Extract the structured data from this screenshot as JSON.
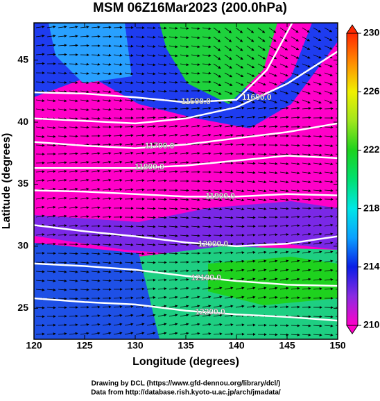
{
  "chart_data": {
    "type": "contour-map",
    "title": "MSM 06Z16Mar2023 (200.0hPa)",
    "x_label": "Longitude (degrees)",
    "y_label": "Latitude  (degrees)",
    "xlim": [
      120,
      150
    ],
    "ylim": [
      22.5,
      48
    ],
    "xticks": [
      120,
      125,
      130,
      135,
      140,
      145,
      150
    ],
    "yticks": [
      25,
      30,
      35,
      40,
      45
    ],
    "colorbar": {
      "lim": [
        210,
        230
      ],
      "ticks": [
        210,
        214,
        218,
        222,
        226,
        230
      ]
    },
    "contours": [
      {
        "level": 11500,
        "label": "11500.0",
        "lon": [
          120,
          125,
          130,
          135,
          140,
          143,
          145.5
        ],
        "lat": [
          42.4,
          42.3,
          42.0,
          41.6,
          41.8,
          44.2,
          48
        ]
      },
      {
        "level": 11600,
        "label": "11600.0",
        "lon": [
          120,
          125,
          130,
          135,
          140,
          145,
          150
        ],
        "lat": [
          40.3,
          40.1,
          39.9,
          40.3,
          41.2,
          43.1,
          45.7
        ]
      },
      {
        "level": 11700,
        "label": "11700.0",
        "lon": [
          120,
          125,
          130,
          135,
          140,
          145,
          150
        ],
        "lat": [
          38.4,
          38.1,
          37.9,
          38.2,
          38.7,
          39.2,
          39.9
        ]
      },
      {
        "level": 11800,
        "label": "11800.0",
        "lon": [
          120,
          125,
          130,
          135,
          140,
          145,
          150
        ],
        "lat": [
          36.3,
          36.3,
          36.3,
          36.5,
          36.9,
          37.3,
          37.1
        ]
      },
      {
        "level": 11900,
        "label": "11900.0",
        "lon": [
          120,
          125,
          130,
          135,
          140,
          145,
          150
        ],
        "lat": [
          34.5,
          34.4,
          34.2,
          34.0,
          34.0,
          34.2,
          34.1
        ]
      },
      {
        "level": 12000,
        "label": "12000.0",
        "lon": [
          120,
          125,
          130,
          135,
          140,
          145,
          150
        ],
        "lat": [
          31.7,
          31.2,
          30.8,
          30.3,
          30.0,
          30.2,
          30.8
        ]
      },
      {
        "level": 12100,
        "label": "12100.0",
        "lon": [
          120,
          125,
          130,
          135,
          140,
          145,
          150
        ],
        "lat": [
          28.6,
          28.4,
          28.1,
          27.6,
          27.2,
          26.9,
          26.8
        ]
      },
      {
        "level": 12200,
        "label": "12200.0",
        "lon": [
          120,
          125,
          130,
          135,
          140,
          145,
          150
        ],
        "lat": [
          25.8,
          25.5,
          25.3,
          24.8,
          24.5,
          24.3,
          24.0
        ]
      }
    ],
    "footer": [
      "Drawing by DCL (https://www.gfd-dennou.org/library/dcl/)",
      "Data from http://database.rish.kyoto-u.ac.jp/arch/jmadata/"
    ]
  }
}
